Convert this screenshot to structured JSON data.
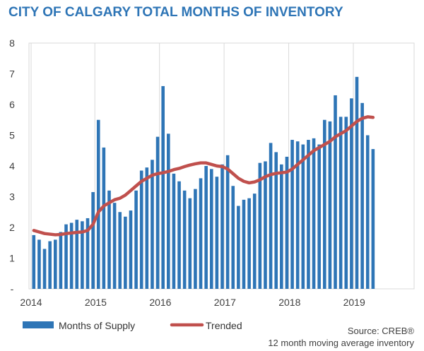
{
  "title": "CITY OF CALGARY TOTAL MONTHS OF INVENTORY",
  "source_line1": "Source: CREB®",
  "source_line2": "12 month moving average inventory",
  "colors": {
    "bar": "#2e75b6",
    "bar_dark": "#1f5a92",
    "line": "#c0504d",
    "title": "#2e75b6"
  },
  "chart_data": {
    "type": "bar",
    "title": "CITY OF CALGARY TOTAL MONTHS OF INVENTORY",
    "xlabel": "",
    "ylabel": "",
    "ylim": [
      0,
      8
    ],
    "y_ticks": [
      "-",
      "1",
      "2",
      "3",
      "4",
      "5",
      "6",
      "7",
      "8"
    ],
    "x_year_labels": [
      "2014",
      "2015",
      "2016",
      "2017",
      "2018",
      "2019"
    ],
    "grid": "vertical lines at each year",
    "legend": "bottom",
    "start": "2014-01",
    "series": [
      {
        "name": "Months of Supply",
        "type": "bar",
        "values": [
          1.75,
          1.6,
          1.3,
          1.55,
          1.6,
          1.85,
          2.1,
          2.15,
          2.25,
          2.2,
          2.3,
          3.15,
          5.5,
          4.6,
          3.2,
          2.8,
          2.5,
          2.35,
          2.55,
          3.2,
          3.85,
          3.95,
          4.2,
          4.95,
          6.6,
          5.05,
          3.75,
          3.5,
          3.2,
          2.95,
          3.25,
          3.6,
          4.0,
          3.9,
          3.65,
          4.05,
          4.35,
          3.35,
          2.7,
          2.9,
          2.95,
          3.1,
          4.1,
          4.15,
          4.75,
          4.45,
          4.05,
          4.3,
          4.85,
          4.8,
          4.7,
          4.85,
          4.9,
          4.7,
          5.5,
          5.45,
          6.3,
          5.6,
          5.6,
          6.2,
          6.9,
          6.05,
          5.0,
          4.55
        ]
      },
      {
        "name": "Trended",
        "type": "line",
        "values": [
          1.9,
          1.85,
          1.8,
          1.78,
          1.76,
          1.77,
          1.8,
          1.82,
          1.84,
          1.85,
          1.9,
          2.1,
          2.5,
          2.7,
          2.8,
          2.9,
          2.95,
          3.05,
          3.2,
          3.35,
          3.5,
          3.6,
          3.7,
          3.75,
          3.78,
          3.82,
          3.88,
          3.92,
          3.98,
          4.03,
          4.07,
          4.1,
          4.1,
          4.05,
          4.0,
          3.98,
          3.9,
          3.75,
          3.6,
          3.5,
          3.45,
          3.48,
          3.55,
          3.65,
          3.72,
          3.76,
          3.78,
          3.8,
          3.9,
          4.05,
          4.2,
          4.35,
          4.5,
          4.6,
          4.7,
          4.8,
          4.95,
          5.05,
          5.15,
          5.3,
          5.45,
          5.55,
          5.6,
          5.58
        ]
      }
    ]
  }
}
